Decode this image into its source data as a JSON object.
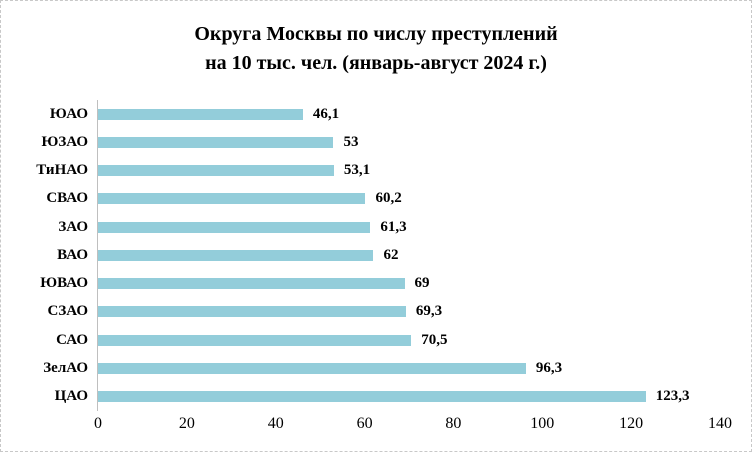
{
  "page": {
    "background": "#ffffff",
    "border_color": "#c8c8c8"
  },
  "chart_data": {
    "type": "bar",
    "orientation": "horizontal",
    "title_line1": "Округа Москвы по числу преступлений",
    "title_line2": "на 10 тыс. чел. (январь-август 2024 г.)",
    "categories": [
      "ЮАО",
      "ЮЗАО",
      "ТиНАО",
      "СВАО",
      "ЗАО",
      "ВАО",
      "ЮВАО",
      "СЗАО",
      "САО",
      "ЗелАО",
      "ЦАО"
    ],
    "values": [
      46.1,
      53,
      53.1,
      60.2,
      61.3,
      62,
      69,
      69.3,
      70.5,
      96.3,
      123.3
    ],
    "value_labels": [
      "46,1",
      "53",
      "53,1",
      "60,2",
      "61,3",
      "62",
      "69",
      "69,3",
      "70,5",
      "96,3",
      "123,3"
    ],
    "xlabel": "",
    "ylabel": "",
    "xlim": [
      0,
      140
    ],
    "x_ticks": [
      0,
      20,
      40,
      60,
      80,
      100,
      120,
      140
    ],
    "x_tick_labels": [
      "0",
      "20",
      "40",
      "60",
      "80",
      "100",
      "120",
      "140"
    ],
    "bar_color": "#93cdda",
    "axis_line_color": "#bfbfbf",
    "grid": false,
    "legend": "none"
  }
}
